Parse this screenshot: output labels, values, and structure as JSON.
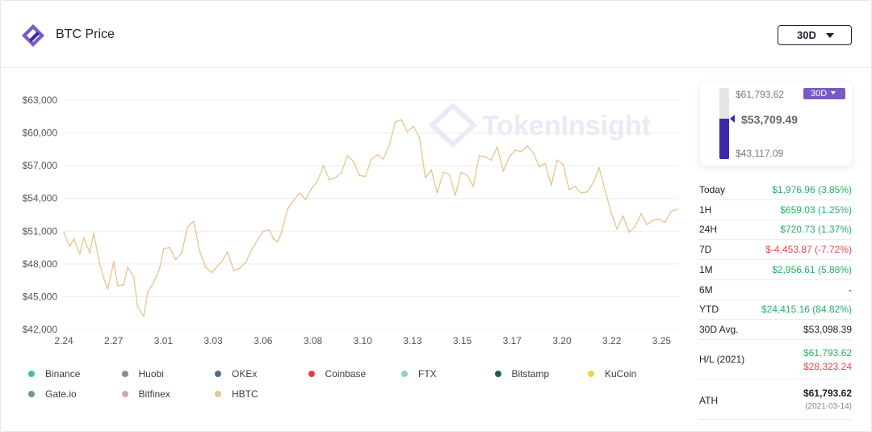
{
  "header": {
    "title": "BTC Price",
    "range_button": "30D"
  },
  "colors": {
    "accent": "#3e28a8",
    "accent_light": "#7a5bc4",
    "price_line": "#e6c58e",
    "up": "#27b066",
    "down": "#e8464f"
  },
  "watermark": "TokenInsight",
  "chart_data": {
    "type": "line",
    "title": "",
    "xlabel": "",
    "ylabel": "",
    "x_tick_labels": [
      "2.24",
      "2.27",
      "3.01",
      "3.03",
      "3.06",
      "3.08",
      "3.10",
      "3.13",
      "3.15",
      "3.17",
      "3.20",
      "3.22",
      "3.25"
    ],
    "y_tick_labels": [
      "$42,000",
      "$45,000",
      "$48,000",
      "$51,000",
      "$54,000",
      "$57,000",
      "$60,000",
      "$63,000"
    ],
    "ylim": [
      42000,
      63000
    ],
    "xlim": [
      0,
      30.8
    ],
    "grid": "horizontal",
    "legend_position": "bottom",
    "series": [
      {
        "name": "HBTC",
        "color": "#e6c58e",
        "x": [
          0,
          0.3,
          0.5,
          0.8,
          1.0,
          1.3,
          1.5,
          1.8,
          2.0,
          2.2,
          2.5,
          2.7,
          3.0,
          3.2,
          3.5,
          3.7,
          4.0,
          4.2,
          4.5,
          4.8,
          5.0,
          5.3,
          5.6,
          5.9,
          6.2,
          6.5,
          6.8,
          7.1,
          7.4,
          7.6,
          7.9,
          8.2,
          8.5,
          8.8,
          9.1,
          9.4,
          9.7,
          10.0,
          10.3,
          10.5,
          10.7,
          10.9,
          11.2,
          11.5,
          11.8,
          12.1,
          12.4,
          12.7,
          13.0,
          13.3,
          13.6,
          13.9,
          14.2,
          14.5,
          14.8,
          15.1,
          15.4,
          15.7,
          16.0,
          16.3,
          16.6,
          16.9,
          17.2,
          17.5,
          17.8,
          18.1,
          18.4,
          18.7,
          19.0,
          19.3,
          19.6,
          19.9,
          20.2,
          20.5,
          20.8,
          21.1,
          21.4,
          21.7,
          22.0,
          22.3,
          22.6,
          22.9,
          23.2,
          23.5,
          23.8,
          24.1,
          24.4,
          24.7,
          25.0,
          25.3,
          25.6,
          25.9,
          26.2,
          26.5,
          26.8,
          27.1,
          27.4,
          27.7,
          28.0,
          28.3,
          28.6,
          28.9,
          29.2,
          29.5,
          29.8,
          30.1,
          30.4,
          30.7
        ],
        "values": [
          50900,
          49600,
          50300,
          48900,
          50400,
          49000,
          50800,
          48000,
          46700,
          45700,
          48200,
          46000,
          46100,
          47700,
          46800,
          44100,
          43200,
          45400,
          46300,
          47600,
          49400,
          49500,
          48400,
          49000,
          51400,
          51900,
          49200,
          47700,
          47200,
          47600,
          48200,
          49100,
          47400,
          47600,
          48100,
          49300,
          50200,
          51000,
          51100,
          50300,
          50000,
          50900,
          53000,
          53800,
          54500,
          53900,
          54900,
          55600,
          57000,
          55700,
          55900,
          56400,
          57900,
          57400,
          56100,
          56000,
          57600,
          58000,
          57600,
          58900,
          61000,
          61200,
          60100,
          60600,
          59600,
          55900,
          56600,
          54500,
          56400,
          56200,
          54300,
          56400,
          56100,
          55100,
          57900,
          57800,
          57500,
          58700,
          56500,
          57800,
          58400,
          58300,
          58800,
          58200,
          56900,
          57200,
          55200,
          57500,
          57100,
          54800,
          55100,
          54500,
          54600,
          55400,
          56800,
          54700,
          52700,
          51200,
          52400,
          50900,
          51400,
          52600,
          51600,
          52000,
          52100,
          51800,
          52800,
          53000
        ]
      }
    ],
    "legend": [
      "Binance",
      "Huobi",
      "OKEx",
      "Coinbase",
      "FTX",
      "Bitstamp",
      "KuCoin",
      "Gate.io",
      "Bitfinex",
      "HBTC"
    ]
  },
  "legend_items": [
    {
      "name": "Binance",
      "color": "#3dbfae"
    },
    {
      "name": "Huobi",
      "color": "#8c8c8c"
    },
    {
      "name": "OKEx",
      "color": "#4a6e86"
    },
    {
      "name": "Coinbase",
      "color": "#e8394a"
    },
    {
      "name": "FTX",
      "color": "#8ed6b0"
    },
    {
      "name": "Bitstamp",
      "color": "#1b5c55"
    },
    {
      "name": "KuCoin",
      "color": "#ecd44a"
    },
    {
      "name": "Gate.io",
      "color": "#6f9590"
    },
    {
      "name": "Bitfinex",
      "color": "#d4a9ab"
    },
    {
      "name": "HBTC",
      "color": "#e6c58e"
    }
  ],
  "gauge": {
    "high": "$61,793.62",
    "current": "$53,709.49",
    "low": "$43,117.09",
    "tag": "30D",
    "level_fraction": 0.566
  },
  "stats": [
    {
      "label": "Today",
      "value": "$1,976.96 (3.85%)",
      "tone": "up"
    },
    {
      "label": "1H",
      "value": "$659.03 (1.25%)",
      "tone": "up"
    },
    {
      "label": "24H",
      "value": "$720.73 (1.37%)",
      "tone": "up"
    },
    {
      "label": "7D",
      "value": "$-4,453.87 (-7.72%)",
      "tone": "down"
    },
    {
      "label": "1M",
      "value": "$2,956.61 (5.88%)",
      "tone": "up"
    },
    {
      "label": "6M",
      "value": "-",
      "tone": "neutral"
    },
    {
      "label": "YTD",
      "value": "$24,415.16 (84.82%)",
      "tone": "up"
    },
    {
      "label": "30D Avg.",
      "value": "$53,098.39",
      "tone": "neutral"
    }
  ],
  "hl": {
    "label": "H/L (2021)",
    "high": "$61,793.62",
    "low": "$28,323.24"
  },
  "ath": {
    "label": "ATH",
    "value": "$61,793.62",
    "date": "(2021-03-14)"
  }
}
